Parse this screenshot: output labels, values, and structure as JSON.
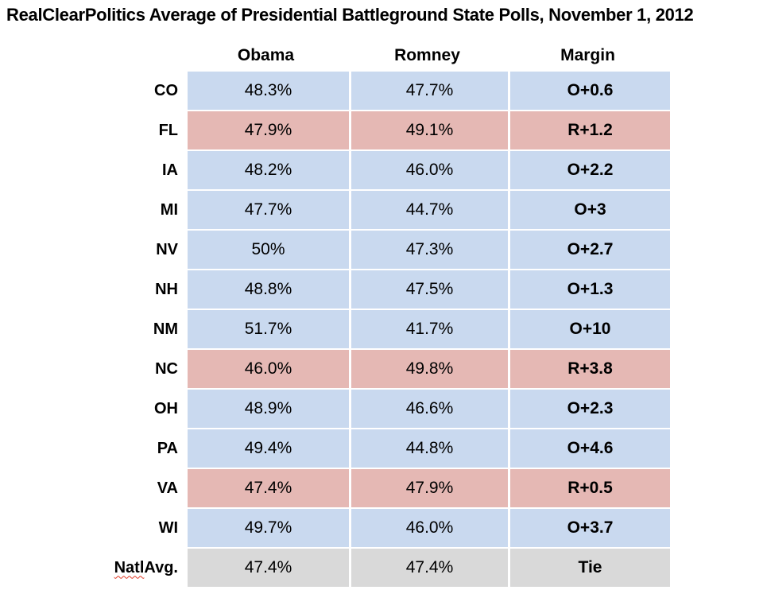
{
  "title": "RealClearPolitics Average of Presidential Battleground State Polls, November 1, 2012",
  "chart_data": {
    "type": "table",
    "title": "RealClearPolitics Average of Presidential Battleground State Polls, November 1, 2012",
    "columns": [
      "Obama",
      "Romney",
      "Margin"
    ],
    "rows": [
      {
        "state": "CO",
        "obama": "48.3%",
        "romney": "47.7%",
        "margin": "O+0.6",
        "leader": "obama"
      },
      {
        "state": "FL",
        "obama": "47.9%",
        "romney": "49.1%",
        "margin": "R+1.2",
        "leader": "romney"
      },
      {
        "state": "IA",
        "obama": "48.2%",
        "romney": "46.0%",
        "margin": "O+2.2",
        "leader": "obama"
      },
      {
        "state": "MI",
        "obama": "47.7%",
        "romney": "44.7%",
        "margin": "O+3",
        "leader": "obama"
      },
      {
        "state": "NV",
        "obama": "50%",
        "romney": "47.3%",
        "margin": "O+2.7",
        "leader": "obama"
      },
      {
        "state": "NH",
        "obama": "48.8%",
        "romney": "47.5%",
        "margin": "O+1.3",
        "leader": "obama"
      },
      {
        "state": "NM",
        "obama": "51.7%",
        "romney": "41.7%",
        "margin": "O+10",
        "leader": "obama"
      },
      {
        "state": "NC",
        "obama": "46.0%",
        "romney": "49.8%",
        "margin": "R+3.8",
        "leader": "romney"
      },
      {
        "state": "OH",
        "obama": "48.9%",
        "romney": "46.6%",
        "margin": "O+2.3",
        "leader": "obama"
      },
      {
        "state": "PA",
        "obama": "49.4%",
        "romney": "44.8%",
        "margin": "O+4.6",
        "leader": "obama"
      },
      {
        "state": "VA",
        "obama": "47.4%",
        "romney": "47.9%",
        "margin": "R+0.5",
        "leader": "romney"
      },
      {
        "state": "WI",
        "obama": "49.7%",
        "romney": "46.0%",
        "margin": "O+3.7",
        "leader": "obama"
      },
      {
        "state": "Natl Avg.",
        "obama": "47.4%",
        "romney": "47.4%",
        "margin": "Tie",
        "leader": "tie",
        "misspelled": "Natl"
      }
    ],
    "row_color_coding": "blue = Obama leads, pink = Romney leads, gray = tie",
    "legend_position": "none",
    "grid": false
  },
  "colors": {
    "obama_lead_bg": "#C9D9EF",
    "romney_lead_bg": "#E5B8B4",
    "tie_bg": "#D9D9D9",
    "text": "#000000",
    "spellcheck": "#E03724"
  }
}
